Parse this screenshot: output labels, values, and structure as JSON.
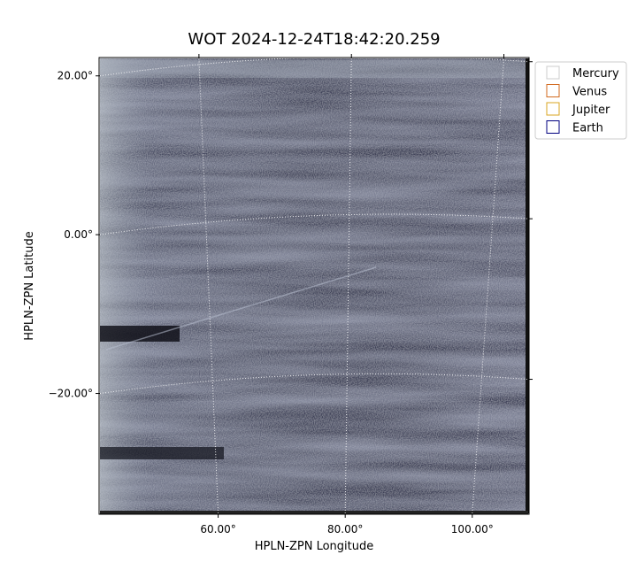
{
  "chart_data": {
    "type": "image",
    "title": "WOT 2024-12-24T18:42:20.259",
    "xlabel": "HPLN-ZPN Longitude",
    "ylabel": "HPLN-ZPN Latitude",
    "xlim": [
      41.4,
      108.8
    ],
    "ylim": [
      -35.1,
      22.2
    ],
    "xticks": [
      {
        "value": 60,
        "label": "60.00°"
      },
      {
        "value": 80,
        "label": "80.00°"
      },
      {
        "value": 100,
        "label": "100.00°"
      }
    ],
    "yticks": [
      {
        "value": -20,
        "label": "−20.00°"
      },
      {
        "value": 0,
        "label": "0.00°"
      },
      {
        "value": 20,
        "label": "20.00°"
      }
    ],
    "grid": true,
    "legend": {
      "position": "outside upper right",
      "entries": [
        {
          "name": "Mercury",
          "color": "#cccccc"
        },
        {
          "name": "Venus",
          "color": "#d2691e"
        },
        {
          "name": "Jupiter",
          "color": "#daa520"
        },
        {
          "name": "Earth",
          "color": "#000080"
        }
      ]
    }
  }
}
